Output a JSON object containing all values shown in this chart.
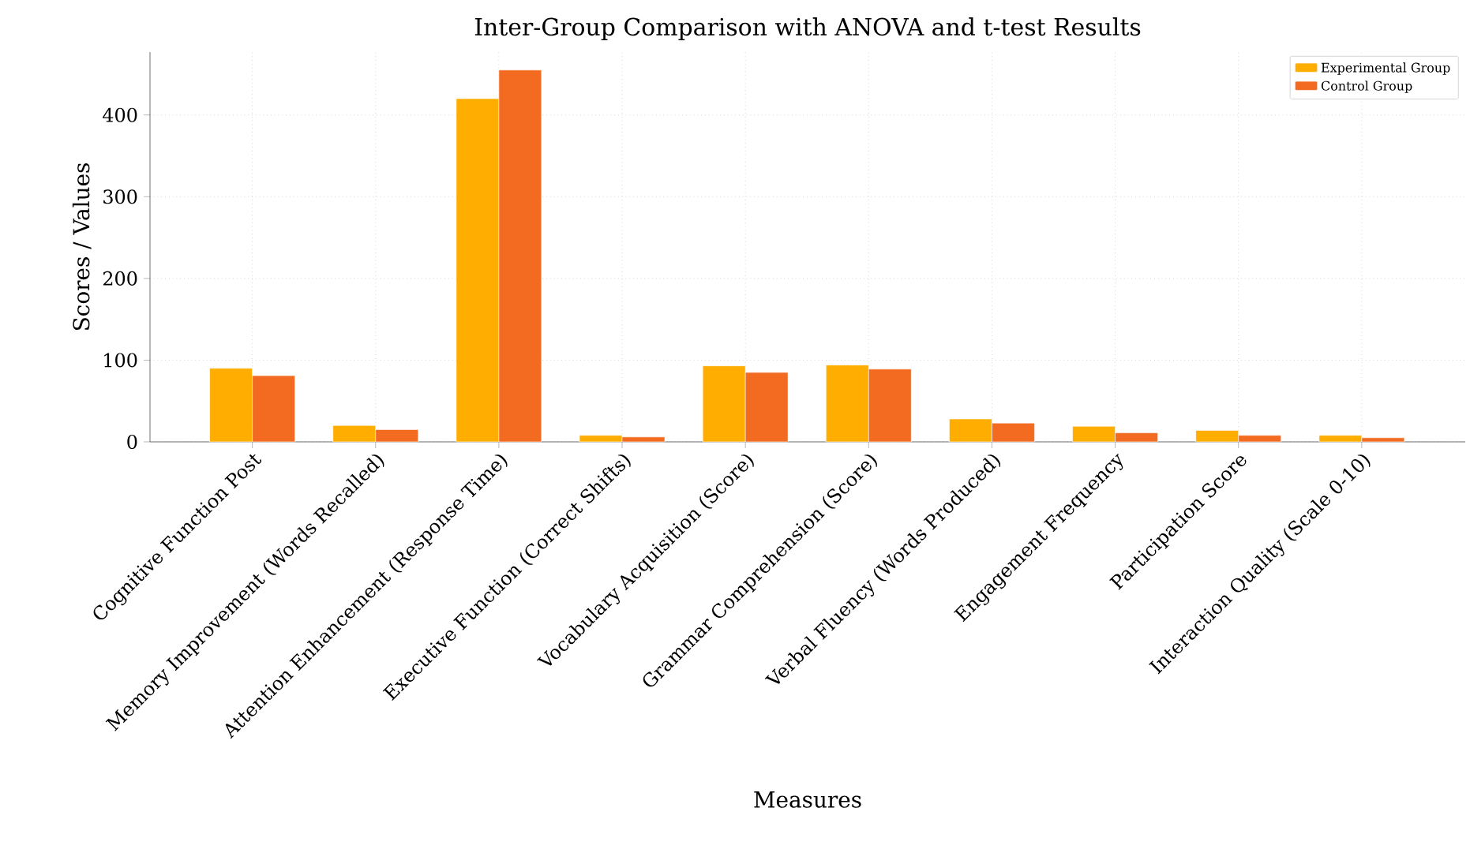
{
  "chart_data": {
    "type": "bar",
    "title": "Inter-Group Comparison with ANOVA and t-test Results",
    "xlabel": "Measures",
    "ylabel": "Scores / Values",
    "categories": [
      "Cognitive Function Post",
      "Memory Improvement (Words Recalled)",
      "Attention Enhancement (Response Time)",
      "Executive Function (Correct Shifts)",
      "Vocabulary Acquisition (Score)",
      "Grammar Comprehension (Score)",
      "Verbal Fluency (Words Produced)",
      "Engagement Frequency",
      "Participation Score",
      "Interaction Quality (Scale 0-10)"
    ],
    "series": [
      {
        "name": "Experimental Group",
        "color": "#ffad00",
        "values": [
          90,
          20,
          420,
          8,
          93,
          94,
          28,
          19,
          14,
          8
        ]
      },
      {
        "name": "Control Group",
        "color": "#f26b21",
        "values": [
          81,
          15,
          455,
          6,
          85,
          89,
          23,
          11,
          8,
          5
        ]
      }
    ],
    "ylim": [
      0,
      477
    ],
    "yticks": [
      0,
      100,
      200,
      300,
      400
    ],
    "grid": true,
    "legend": "top right"
  }
}
